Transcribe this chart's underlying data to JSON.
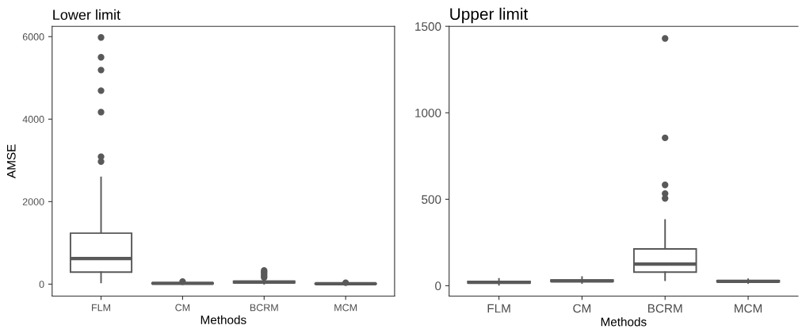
{
  "chart_data": [
    {
      "type": "box",
      "title": "Lower limit",
      "xlabel": "Methods",
      "ylabel": "AMSE",
      "categories": [
        "FLM",
        "CM",
        "BCRM",
        "MCM"
      ],
      "color": "#595959",
      "ylim": [
        -290,
        6250
      ],
      "yticks": [
        0,
        2000,
        4000,
        6000
      ],
      "grid": false,
      "marker": "circle",
      "boxes": [
        {
          "low": 40,
          "q1": 290,
          "median": 620,
          "q3": 1235,
          "high": 2590,
          "outliers": [
            2970,
            3090,
            4170,
            4690,
            5190,
            5500,
            5980
          ]
        },
        {
          "low": 5,
          "q1": 10,
          "median": 20,
          "q3": 30,
          "high": 50,
          "outliers": [
            60
          ]
        },
        {
          "low": 5,
          "q1": 30,
          "median": 50,
          "q3": 70,
          "high": 120,
          "outliers": [
            160,
            200,
            250,
            290,
            330
          ]
        },
        {
          "low": 0,
          "q1": 5,
          "median": 10,
          "q3": 15,
          "high": 25,
          "outliers": [
            35
          ]
        }
      ]
    },
    {
      "type": "box",
      "title": "Upper limit",
      "xlabel": "Methods",
      "categories": [
        "FLM",
        "CM",
        "BCRM",
        "MCM"
      ],
      "color": "#595959",
      "ylim": [
        -60,
        1500
      ],
      "yticks": [
        0,
        500,
        1000,
        1500
      ],
      "grid": false,
      "marker": "circle",
      "boxes": [
        {
          "low": 5,
          "q1": 15,
          "median": 20,
          "q3": 25,
          "high": 40
        },
        {
          "low": 15,
          "q1": 25,
          "median": 28,
          "q3": 33,
          "high": 50
        },
        {
          "low": 32,
          "q1": 79,
          "median": 125,
          "q3": 213,
          "high": 380,
          "outliers": [
            505,
            533,
            583,
            855,
            1430
          ]
        },
        {
          "low": 15,
          "q1": 22,
          "median": 25,
          "q3": 30,
          "high": 38
        }
      ]
    }
  ]
}
